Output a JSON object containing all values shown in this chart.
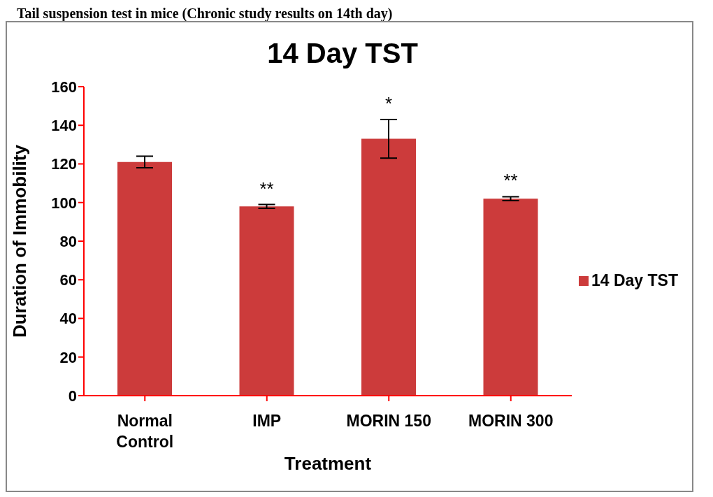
{
  "chart_data": {
    "type": "bar",
    "title": "14 Day TST",
    "xlabel": "Treatment",
    "ylabel": "Duration of Immobility",
    "categories": [
      "Normal Control",
      "IMP",
      "MORIN 150",
      "MORIN 300"
    ],
    "series": [
      {
        "name": "14 Day TST",
        "color": "#cc3b3b",
        "values": [
          121,
          98,
          133,
          102
        ],
        "errors": [
          3,
          1,
          10,
          1
        ],
        "value_labels": [
          null,
          "**",
          "*",
          "**"
        ]
      }
    ],
    "ylim": [
      0,
      160
    ],
    "yticks": [
      0,
      20,
      40,
      60,
      80,
      100,
      120,
      140,
      160
    ],
    "grid": false,
    "legend": "right",
    "annotations": [
      "Tail suspension test in mice (Chronic study results on 14th day)"
    ]
  }
}
